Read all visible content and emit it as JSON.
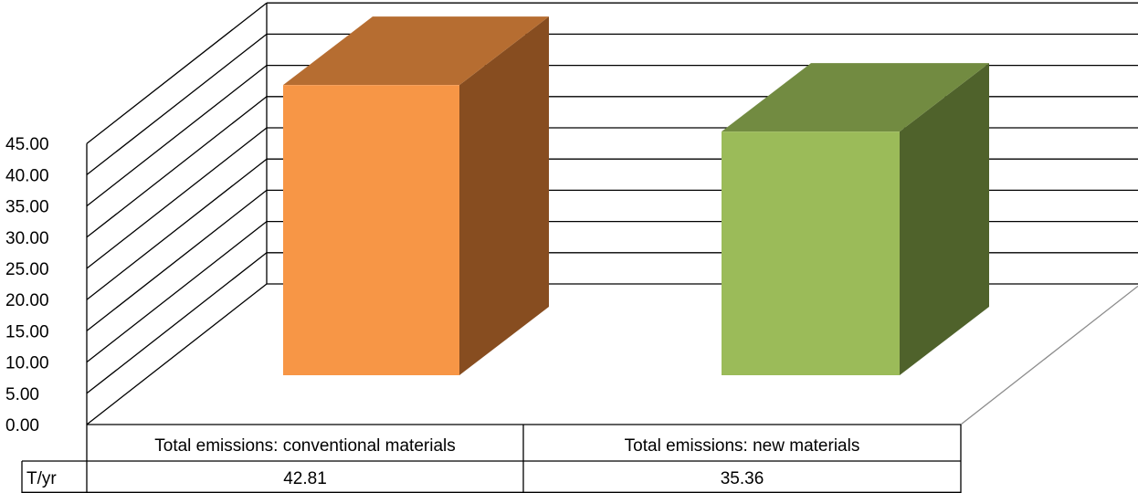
{
  "chart_data": {
    "type": "bar",
    "style": "3d-column-with-data-table",
    "categories": [
      "Total emissions: conventional materials",
      "Total emissions: new materials"
    ],
    "series": [
      {
        "name": "T/yr",
        "values": [
          42.81,
          35.36
        ]
      }
    ],
    "ylim": [
      0,
      45
    ],
    "ytick_labels": [
      "0.00",
      "5.00",
      "10.00",
      "15.00",
      "20.00",
      "25.00",
      "30.00",
      "35.00",
      "40.00",
      "45.00"
    ],
    "table": {
      "row_header": "T/yr",
      "cells": [
        "42.81",
        "35.36"
      ]
    },
    "grid": true,
    "legend": "none",
    "colors": {
      "bar_1_front": "#f79646",
      "bar_1_side": "#874d20",
      "bar_1_top": "#b66d31",
      "bar_2_front": "#9bbb59",
      "bar_2_side": "#4f622b",
      "bar_2_top": "#728b41",
      "gridline": "#000000",
      "floor_edge": "#8c8c8c"
    }
  }
}
